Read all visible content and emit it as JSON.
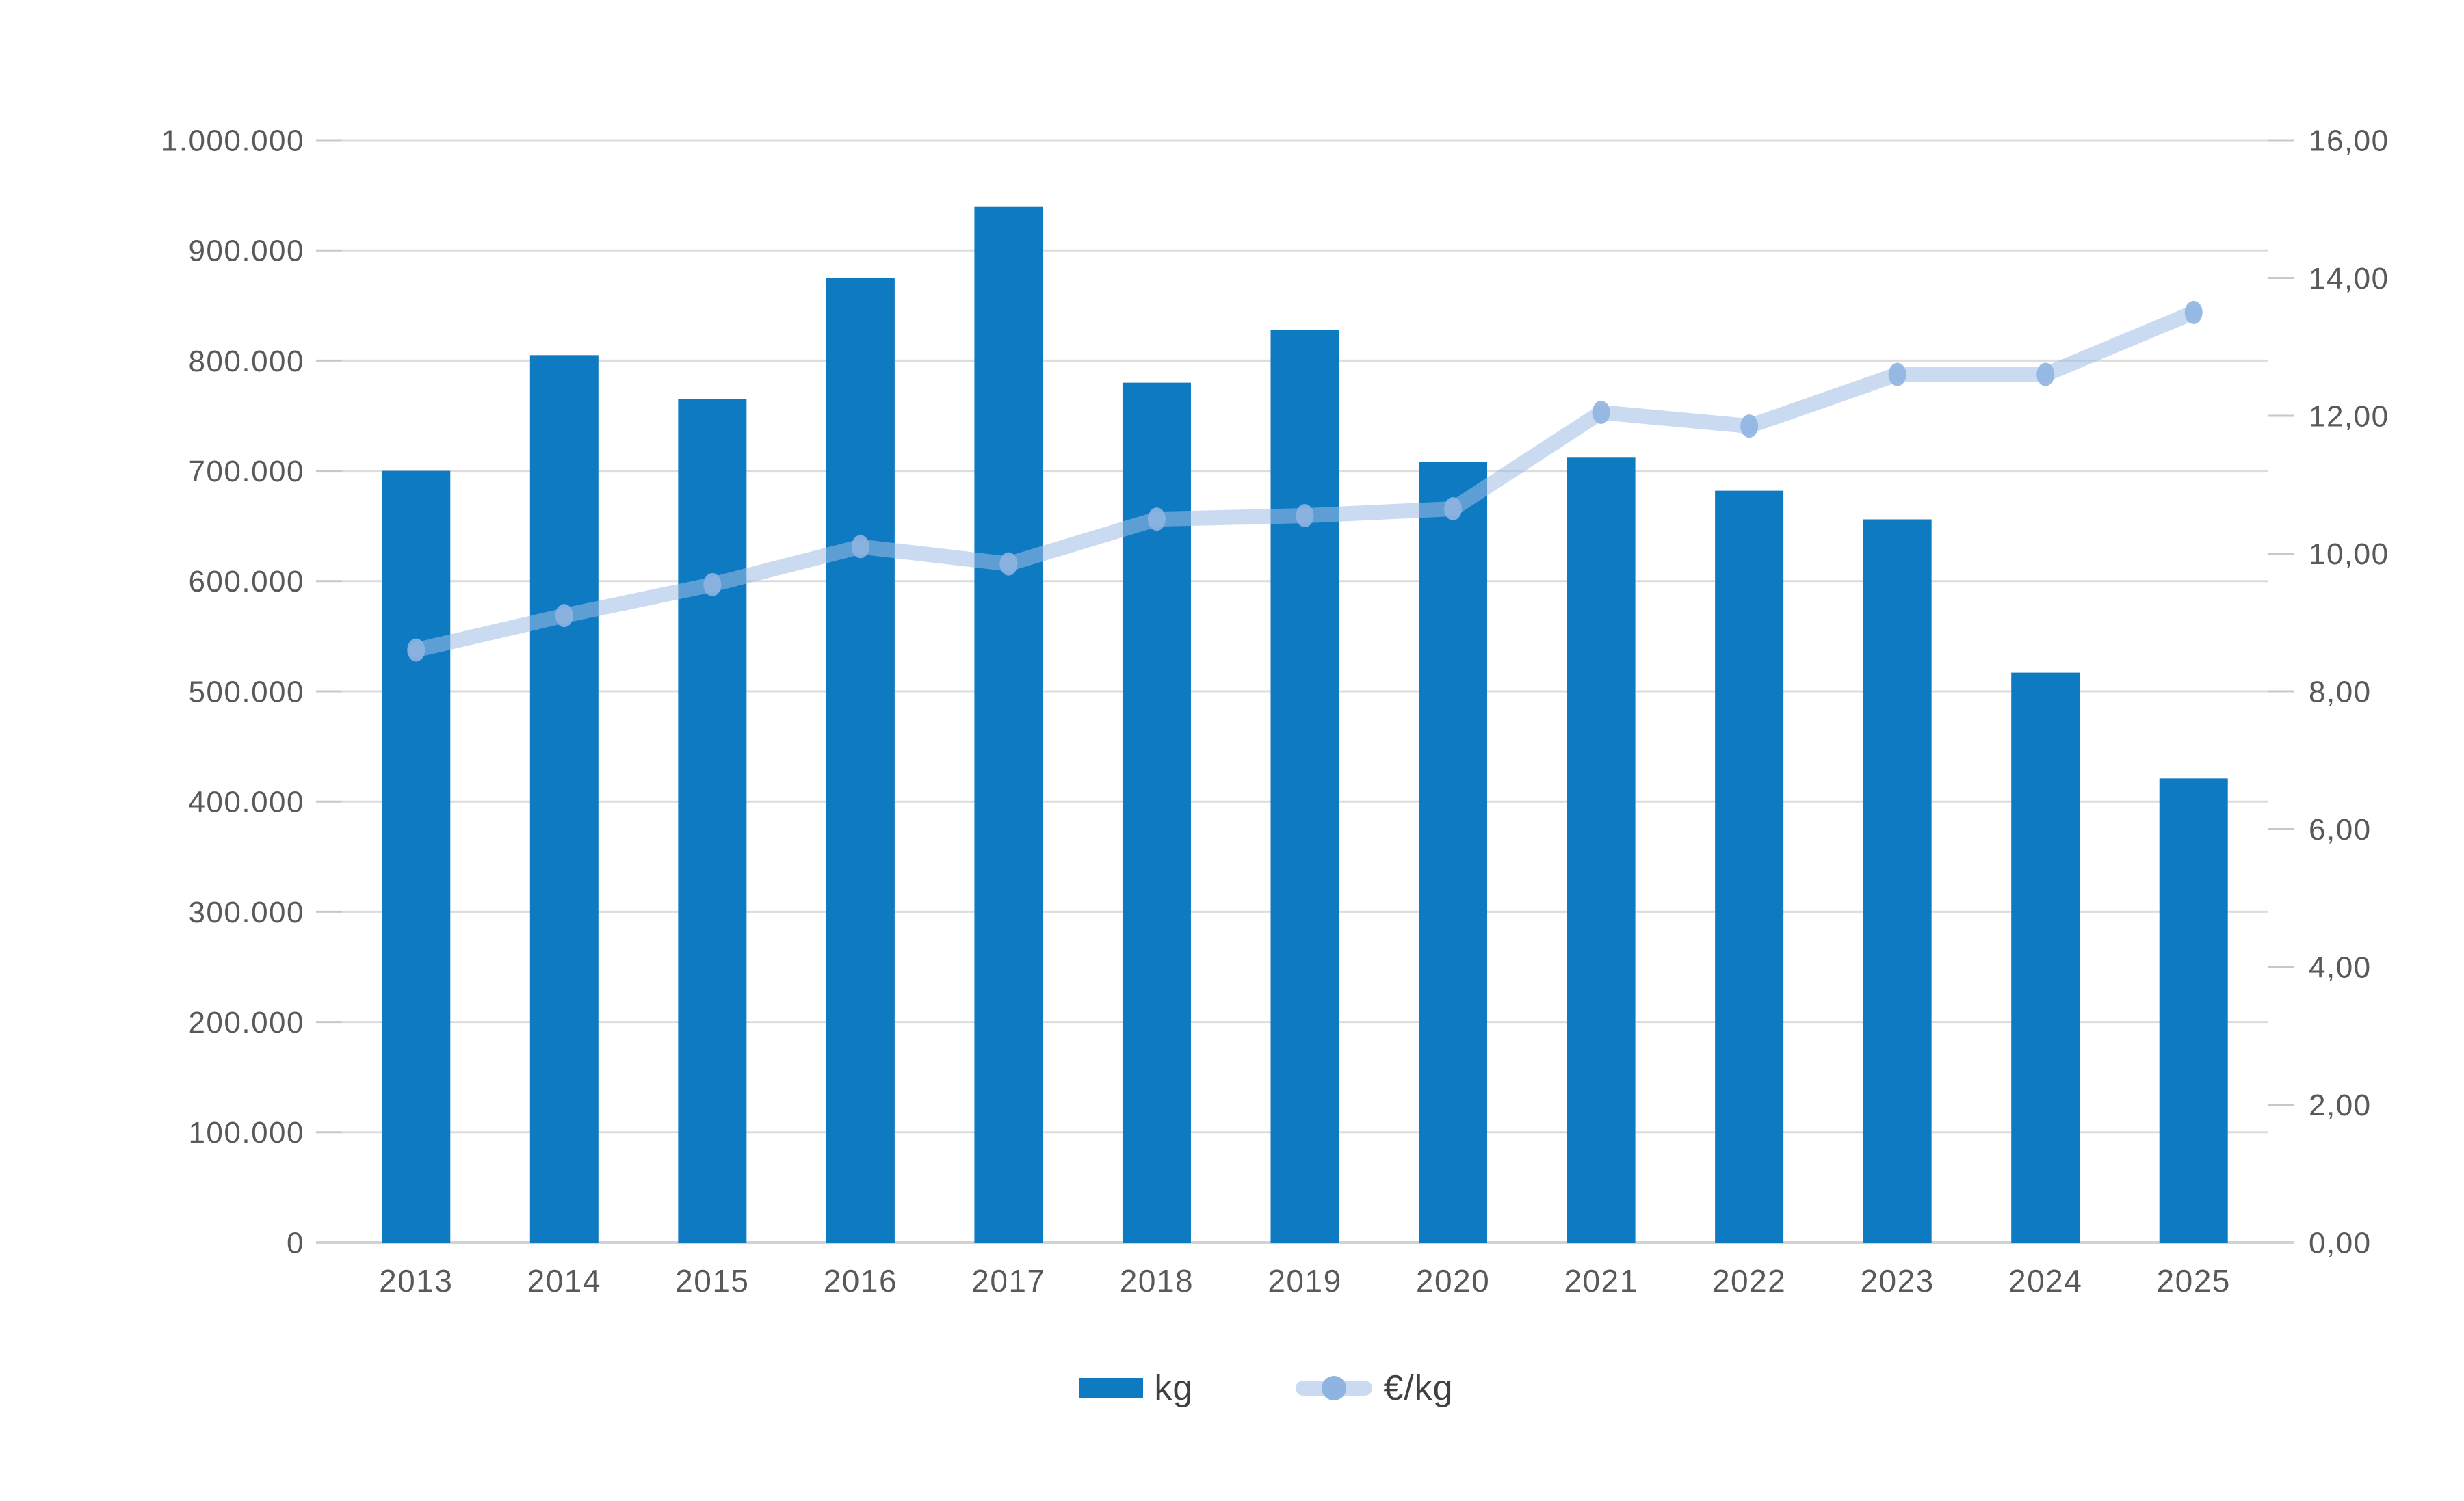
{
  "chart_data": {
    "type": "combo-bar-line",
    "title": "",
    "categories": [
      "2013",
      "2014",
      "2015",
      "2016",
      "2017",
      "2018",
      "2019",
      "2020",
      "2021",
      "2022",
      "2023",
      "2024",
      "2025"
    ],
    "series": [
      {
        "name": "kg",
        "type": "bar",
        "axis": "left",
        "values": [
          700000,
          805000,
          765000,
          875000,
          940000,
          780000,
          828000,
          708000,
          712000,
          682000,
          656000,
          517000,
          421000
        ]
      },
      {
        "name": "€/kg",
        "type": "line",
        "axis": "right",
        "values": [
          8.6,
          9.1,
          9.55,
          10.1,
          9.85,
          10.5,
          10.55,
          10.65,
          12.05,
          11.85,
          12.6,
          12.6,
          13.5
        ]
      }
    ],
    "left_axis": {
      "min": 0,
      "max": 1000000,
      "step": 100000,
      "labels": [
        "1.000.000",
        "900.000",
        "800.000",
        "700.000",
        "600.000",
        "500.000",
        "400.000",
        "300.000",
        "200.000",
        "100.000",
        "0"
      ]
    },
    "right_axis": {
      "min": 0,
      "max": 16,
      "step": 2,
      "labels": [
        "16,00",
        "14,00",
        "12,00",
        "10,00",
        "8,00",
        "6,00",
        "4,00",
        "2,00",
        "0,00"
      ]
    },
    "grid": true,
    "legend_position": "bottom"
  },
  "colors": {
    "background": "#ffffff",
    "bar": "#0e7ac2",
    "line": "rgba(158,190,230,0.55)",
    "marker": "#8fb4e2",
    "gridline": "#dcdcdc",
    "axis_line": "#d2d2d2",
    "tick": "#c8c8c8",
    "label_text": "#595959"
  }
}
